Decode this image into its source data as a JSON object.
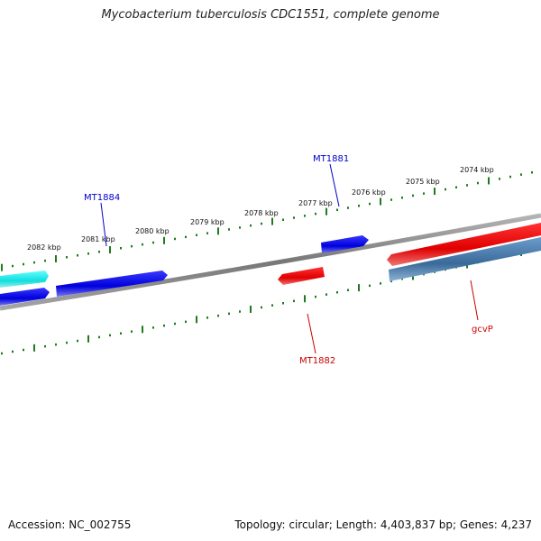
{
  "title": "Mycobacterium tuberculosis CDC1551, complete genome",
  "footer": {
    "accession": "Accession: NC_002755",
    "summary": "Topology: circular; Length: 4,403,837 bp; Genes: 4,237"
  },
  "ruler_labels": [
    "2082 kbp",
    "2081 kbp",
    "2080 kbp",
    "2079 kbp",
    "2078 kbp",
    "2077 kbp",
    "2076 kbp",
    "2075 kbp",
    "2074 kbp"
  ],
  "gene_labels": [
    {
      "text": "MT1884",
      "color": "#0000cc"
    },
    {
      "text": "MT1881",
      "color": "#0000cc"
    },
    {
      "text": "MT1882",
      "color": "#cc0000"
    },
    {
      "text": "gcvP",
      "color": "#cc0000"
    }
  ],
  "colors": {
    "backbone": "#7a7a7a",
    "ruler": "#1f7a1f",
    "forward_gene": "#0000e0",
    "reverse_gene": "#ee0000",
    "cyan_gene": "#22dddd",
    "steel_gene": "#3d6fa0"
  }
}
